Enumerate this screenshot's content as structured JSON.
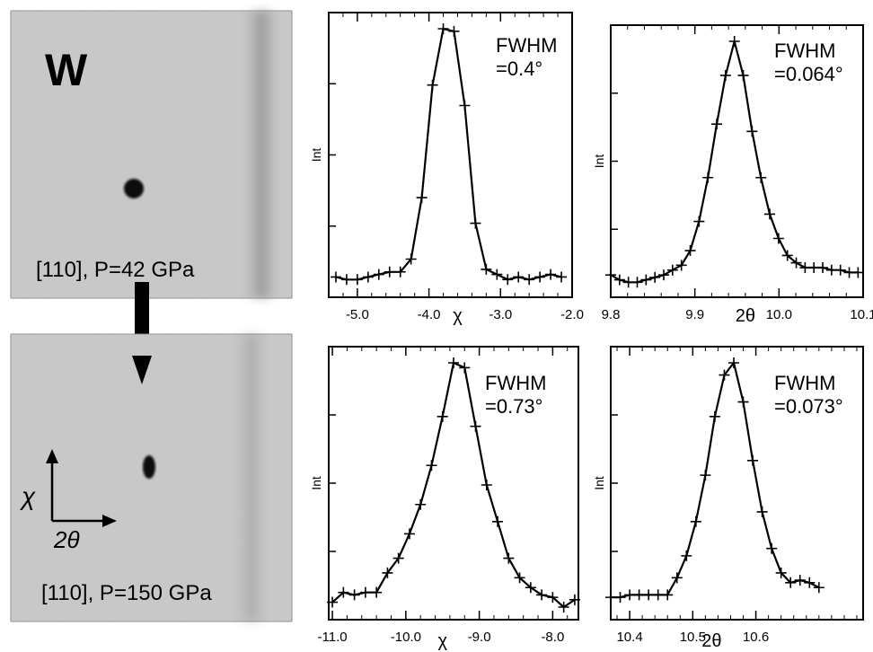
{
  "images": {
    "top": {
      "label": "W",
      "caption": "[110], P=42 GPa"
    },
    "bottom": {
      "caption": "[110], P=150 GPa",
      "axis_chi": "χ",
      "axis_2theta": "2θ"
    }
  },
  "chart_data": [
    {
      "type": "line",
      "id": "p1",
      "ylabel": "Int",
      "xlabel": "χ",
      "annotation": [
        "FWHM",
        "=0.4°"
      ],
      "xlim": [
        -5.4,
        -2.0
      ],
      "ylim": [
        0,
        1
      ],
      "xticks": [
        -5.0,
        -4.0,
        -3.0,
        -2.0
      ],
      "xtick_labels": [
        "-5.0",
        "-4.0",
        "-3.0",
        "-2.0"
      ],
      "x": [
        -5.3,
        -5.15,
        -5.0,
        -4.85,
        -4.7,
        -4.55,
        -4.4,
        -4.25,
        -4.1,
        -3.95,
        -3.8,
        -3.65,
        -3.5,
        -3.35,
        -3.2,
        -3.05,
        -2.9,
        -2.75,
        -2.6,
        -2.45,
        -2.3,
        -2.15
      ],
      "y": [
        0.03,
        0.02,
        0.02,
        0.03,
        0.04,
        0.05,
        0.05,
        0.1,
        0.34,
        0.78,
        1.0,
        0.99,
        0.7,
        0.24,
        0.06,
        0.04,
        0.02,
        0.03,
        0.02,
        0.03,
        0.04,
        0.03
      ]
    },
    {
      "type": "line",
      "id": "p2",
      "ylabel": "Int",
      "xlabel": "2θ",
      "annotation": [
        "FWHM",
        "=0.064°"
      ],
      "xlim": [
        9.8,
        10.1
      ],
      "ylim": [
        0,
        1
      ],
      "xticks": [
        9.8,
        9.9,
        10.0,
        10.1
      ],
      "xtick_labels": [
        "9.8",
        "9.9",
        "10.0",
        "10.1"
      ],
      "x": [
        9.8,
        9.8105,
        9.821,
        9.8315,
        9.842,
        9.8525,
        9.863,
        9.8735,
        9.884,
        9.8945,
        9.905,
        9.9155,
        9.926,
        9.9365,
        9.947,
        9.9575,
        9.968,
        9.9785,
        9.989,
        9.9995,
        10.01,
        10.0205,
        10.031,
        10.0415,
        10.052,
        10.0625,
        10.073,
        10.0835,
        10.094
      ],
      "y": [
        0.04,
        0.02,
        0.01,
        0.01,
        0.02,
        0.03,
        0.04,
        0.06,
        0.08,
        0.14,
        0.26,
        0.44,
        0.66,
        0.86,
        1.0,
        0.86,
        0.63,
        0.44,
        0.29,
        0.19,
        0.12,
        0.09,
        0.07,
        0.07,
        0.07,
        0.06,
        0.06,
        0.05,
        0.05
      ]
    },
    {
      "type": "line",
      "id": "p3",
      "ylabel": "Int",
      "xlabel": "χ",
      "annotation": [
        "FWHM",
        "=0.73°"
      ],
      "xlim": [
        -11.05,
        -7.65
      ],
      "ylim": [
        0,
        1
      ],
      "xticks": [
        -11.0,
        -10.0,
        -9.0,
        -8.0
      ],
      "xtick_labels": [
        "-11.0",
        "-10.0",
        "-9.0",
        "-8.0"
      ],
      "x": [
        -11.0,
        -10.85,
        -10.7,
        -10.55,
        -10.4,
        -10.25,
        -10.1,
        -9.95,
        -9.8,
        -9.65,
        -9.5,
        -9.35,
        -9.2,
        -9.05,
        -8.9,
        -8.75,
        -8.6,
        -8.45,
        -8.3,
        -8.15,
        -8.0,
        -7.85,
        -7.7
      ],
      "y": [
        0.02,
        0.06,
        0.05,
        0.06,
        0.06,
        0.14,
        0.2,
        0.3,
        0.42,
        0.58,
        0.78,
        1.0,
        0.98,
        0.74,
        0.5,
        0.35,
        0.2,
        0.12,
        0.08,
        0.05,
        0.04,
        0.0,
        0.03
      ]
    },
    {
      "type": "line",
      "id": "p4",
      "ylabel": "Int",
      "xlabel": "2θ",
      "annotation": [
        "FWHM",
        "=0.073°"
      ],
      "xlim": [
        10.37,
        10.77
      ],
      "ylim": [
        0,
        1
      ],
      "xticks": [
        10.4,
        10.5,
        10.6
      ],
      "xtick_labels": [
        "10.4",
        "10.5",
        "10.6"
      ],
      "x": [
        10.37,
        10.385,
        10.4,
        10.415,
        10.43,
        10.445,
        10.46,
        10.475,
        10.49,
        10.505,
        10.52,
        10.535,
        10.55,
        10.565,
        10.58,
        10.595,
        10.61,
        10.625,
        10.64,
        10.655,
        10.67,
        10.685,
        10.7
      ],
      "y": [
        0.04,
        0.04,
        0.05,
        0.05,
        0.05,
        0.05,
        0.05,
        0.12,
        0.21,
        0.35,
        0.54,
        0.78,
        0.95,
        1.0,
        0.84,
        0.6,
        0.39,
        0.24,
        0.14,
        0.1,
        0.11,
        0.1,
        0.08
      ]
    }
  ]
}
